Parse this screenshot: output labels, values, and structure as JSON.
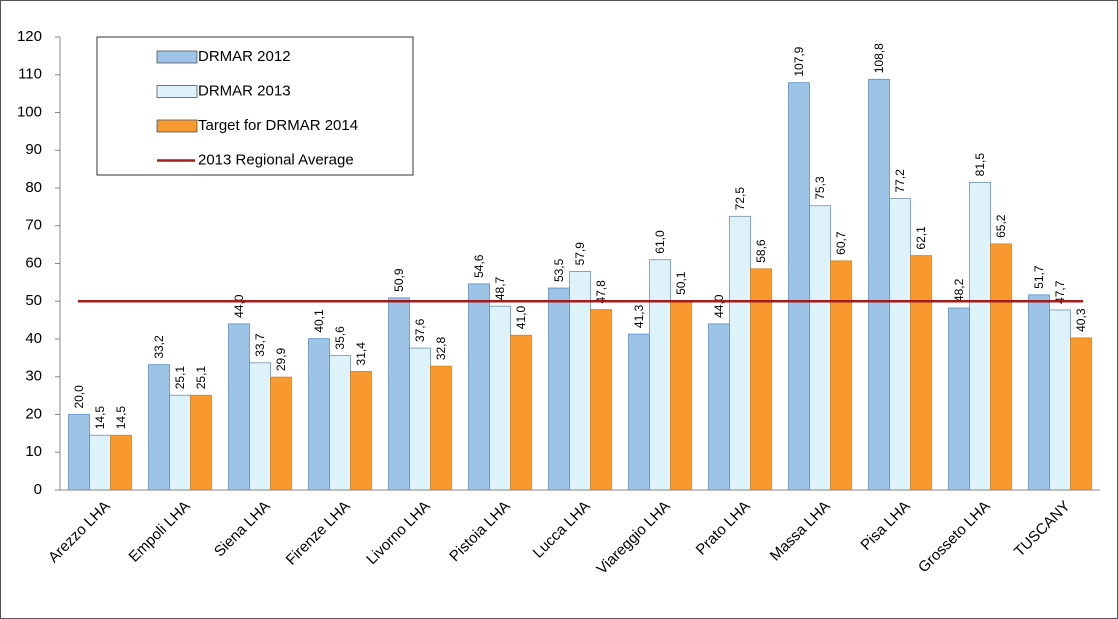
{
  "chart_data": {
    "type": "bar",
    "categories": [
      "Arezzo LHA",
      "Empoli LHA",
      "Siena LHA",
      "Firenze LHA",
      "Livorno LHA",
      "Pistoia LHA",
      "Lucca LHA",
      "Viareggio LHA",
      "Prato LHA",
      "Massa LHA",
      "Pisa LHA",
      "Grosseto LHA",
      "TUSCANY"
    ],
    "series": [
      {
        "name": "DRMAR 2012",
        "color": "#9dc3e6",
        "values": [
          20.0,
          33.2,
          44.0,
          40.1,
          50.9,
          54.6,
          53.5,
          41.3,
          44.0,
          107.9,
          108.8,
          48.2,
          51.7
        ],
        "value_labels": [
          "20,0",
          "33,2",
          "44,0",
          "40,1",
          "50,9",
          "54,6",
          "53,5",
          "41,3",
          "44,0",
          "107,9",
          "108,8",
          "48,2",
          "51,7"
        ]
      },
      {
        "name": "DRMAR 2013",
        "color": "#ddf3f9",
        "values": [
          14.5,
          25.1,
          33.7,
          35.6,
          37.6,
          48.7,
          57.9,
          61.0,
          72.5,
          75.3,
          77.2,
          81.5,
          47.7
        ],
        "value_labels": [
          "14,5",
          "25,1",
          "33,7",
          "35,6",
          "37,6",
          "48,7",
          "57,9",
          "61,0",
          "72,5",
          "75,3",
          "77,2",
          "81,5",
          "47,7"
        ]
      },
      {
        "name": "Target for DRMAR 2014",
        "color": "#f7992e",
        "values": [
          14.5,
          25.1,
          29.9,
          31.4,
          32.8,
          41.0,
          47.8,
          50.1,
          58.6,
          60.7,
          62.1,
          65.2,
          40.3
        ],
        "value_labels": [
          "14,5",
          "25,1",
          "29,9",
          "31,4",
          "32,8",
          "41,0",
          "47,8",
          "50,1",
          "58,6",
          "60,7",
          "62,1",
          "65,2",
          "40,3"
        ]
      }
    ],
    "reference_line": {
      "name": "2013 Regional Average",
      "value": 50,
      "color": "#a11d1d"
    },
    "ylim": [
      0,
      120
    ],
    "yticks": [
      0,
      10,
      20,
      30,
      40,
      50,
      60,
      70,
      80,
      90,
      100,
      110,
      120
    ],
    "grid": false,
    "legend": "upper left"
  }
}
